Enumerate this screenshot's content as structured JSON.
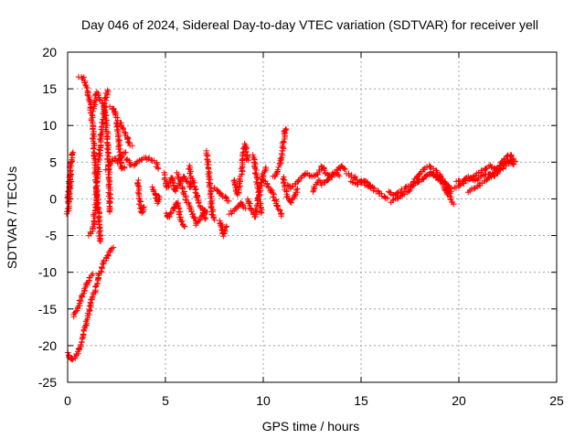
{
  "chart_data": {
    "type": "scatter",
    "title": "Day 046 of 2024, Sidereal Day-to-day VTEC variation (SDTVAR) for receiver yell",
    "xlabel": "GPS time / hours",
    "ylabel": "SDTVAR / TECUs",
    "xlim": [
      0,
      25
    ],
    "ylim": [
      -25,
      20
    ],
    "xticks": [
      0,
      5,
      10,
      15,
      20,
      25
    ],
    "yticks": [
      -25,
      -20,
      -15,
      -10,
      -5,
      0,
      5,
      10,
      15,
      20
    ],
    "grid": true,
    "marker": "+",
    "marker_color": "#ff0000",
    "series": [
      {
        "name": "SDTVAR",
        "tracks": [
          [
            [
              0.0,
              -21.0
            ],
            [
              0.2,
              -22.0
            ],
            [
              0.4,
              -21.5
            ],
            [
              0.6,
              -20.5
            ],
            [
              0.8,
              -18.5
            ],
            [
              1.0,
              -16.5
            ],
            [
              1.2,
              -14.0
            ],
            [
              1.4,
              -12.5
            ],
            [
              1.6,
              -10.5
            ],
            [
              1.8,
              -9.0
            ],
            [
              2.0,
              -8.0
            ],
            [
              2.2,
              -7.0
            ],
            [
              2.35,
              -6.5
            ]
          ],
          [
            [
              0.3,
              -16.0
            ],
            [
              0.5,
              -15.0
            ],
            [
              0.7,
              -13.5
            ],
            [
              0.9,
              -12.0
            ],
            [
              1.1,
              -11.0
            ],
            [
              1.3,
              -10.0
            ]
          ],
          [
            [
              0.0,
              -0.5
            ],
            [
              0.05,
              0.5
            ],
            [
              0.1,
              2.5
            ],
            [
              0.15,
              4.5
            ],
            [
              0.2,
              6.0
            ],
            [
              0.25,
              6.5
            ]
          ],
          [
            [
              0.0,
              -2.0
            ],
            [
              0.08,
              0.0
            ],
            [
              0.12,
              1.5
            ],
            [
              0.18,
              3.5
            ]
          ],
          [
            [
              0.6,
              16.5
            ],
            [
              0.8,
              16.5
            ],
            [
              1.0,
              15.0
            ],
            [
              1.2,
              12.0
            ],
            [
              1.3,
              9.0
            ],
            [
              1.4,
              5.0
            ],
            [
              1.45,
              2.5
            ],
            [
              1.55,
              -1.0
            ],
            [
              1.6,
              -3.0
            ],
            [
              1.65,
              -5.0
            ],
            [
              1.7,
              -6.0
            ]
          ],
          [
            [
              1.1,
              -5.0
            ],
            [
              1.3,
              -4.0
            ],
            [
              1.4,
              -1.5
            ],
            [
              1.5,
              1.5
            ],
            [
              1.6,
              5.0
            ],
            [
              1.7,
              8.0
            ],
            [
              1.8,
              10.5
            ],
            [
              1.9,
              13.0
            ],
            [
              2.0,
              14.5
            ],
            [
              2.1,
              15.0
            ]
          ],
          [
            [
              1.3,
              12.0
            ],
            [
              1.5,
              14.5
            ],
            [
              1.7,
              13.5
            ],
            [
              1.9,
              12.0
            ],
            [
              2.05,
              8.0
            ],
            [
              2.1,
              4.0
            ],
            [
              2.15,
              0.0
            ],
            [
              2.2,
              -2.0
            ]
          ],
          [
            [
              2.2,
              12.5
            ],
            [
              2.4,
              12.0
            ],
            [
              2.5,
              11.0
            ],
            [
              2.6,
              8.0
            ],
            [
              2.7,
              5.0
            ],
            [
              2.8,
              4.0
            ],
            [
              3.0,
              4.5
            ]
          ],
          [
            [
              2.0,
              4.0
            ],
            [
              2.2,
              5.0
            ],
            [
              2.4,
              5.5
            ],
            [
              2.6,
              5.0
            ],
            [
              2.8,
              6.0
            ],
            [
              3.0,
              6.5
            ]
          ],
          [
            [
              2.7,
              10.5
            ],
            [
              2.9,
              9.0
            ],
            [
              3.1,
              8.0
            ],
            [
              3.3,
              7.0
            ]
          ],
          [
            [
              3.0,
              5.5
            ],
            [
              3.3,
              4.5
            ],
            [
              3.6,
              5.0
            ],
            [
              3.9,
              5.5
            ],
            [
              4.2,
              5.5
            ],
            [
              4.5,
              5.0
            ],
            [
              4.6,
              4.0
            ]
          ],
          [
            [
              3.6,
              2.5
            ],
            [
              3.7,
              -1.0
            ],
            [
              3.8,
              -2.0
            ],
            [
              3.9,
              -1.0
            ]
          ],
          [
            [
              4.3,
              1.5
            ],
            [
              4.5,
              0.5
            ],
            [
              4.6,
              -0.5
            ],
            [
              4.7,
              0.5
            ]
          ],
          [
            [
              4.9,
              3.5
            ],
            [
              5.1,
              1.5
            ],
            [
              5.3,
              3.0
            ],
            [
              5.5,
              1.0
            ],
            [
              5.7,
              2.0
            ],
            [
              5.9,
              3.0
            ],
            [
              6.1,
              2.5
            ],
            [
              6.3,
              1.5
            ],
            [
              6.5,
              2.5
            ]
          ],
          [
            [
              5.0,
              -2.0
            ],
            [
              5.2,
              -2.5
            ],
            [
              5.4,
              -1.5
            ],
            [
              5.6,
              -0.5
            ],
            [
              5.8,
              -3.0
            ],
            [
              6.0,
              -4.0
            ]
          ],
          [
            [
              5.6,
              3.5
            ],
            [
              5.8,
              2.0
            ],
            [
              6.0,
              0.5
            ],
            [
              6.2,
              -1.0
            ],
            [
              6.4,
              -2.0
            ],
            [
              6.6,
              -3.5
            ],
            [
              6.8,
              -2.5
            ],
            [
              7.0,
              -1.5
            ],
            [
              7.2,
              -2.0
            ]
          ],
          [
            [
              6.2,
              4.5
            ],
            [
              6.3,
              3.0
            ],
            [
              6.5,
              1.5
            ],
            [
              6.7,
              -0.5
            ],
            [
              6.9,
              -1.5
            ],
            [
              7.1,
              -3.0
            ]
          ],
          [
            [
              7.1,
              6.5
            ],
            [
              7.2,
              4.0
            ],
            [
              7.3,
              1.0
            ],
            [
              7.4,
              -2.0
            ],
            [
              7.5,
              -3.0
            ]
          ],
          [
            [
              7.5,
              1.5
            ],
            [
              7.7,
              1.0
            ],
            [
              7.9,
              0.5
            ],
            [
              8.1,
              0.0
            ],
            [
              8.3,
              -0.5
            ]
          ],
          [
            [
              7.8,
              -3.0
            ],
            [
              7.9,
              -4.0
            ],
            [
              8.0,
              -5.0
            ],
            [
              8.1,
              -3.5
            ]
          ],
          [
            [
              8.3,
              -2.0
            ],
            [
              8.5,
              -1.5
            ],
            [
              8.7,
              -1.0
            ],
            [
              8.9,
              -0.5
            ],
            [
              9.1,
              -1.5
            ]
          ],
          [
            [
              8.5,
              2.5
            ],
            [
              8.7,
              0.5
            ],
            [
              8.9,
              4.0
            ],
            [
              9.0,
              6.5
            ],
            [
              9.1,
              7.5
            ],
            [
              9.2,
              5.0
            ]
          ],
          [
            [
              9.2,
              0.0
            ],
            [
              9.4,
              -1.5
            ],
            [
              9.6,
              -2.5
            ],
            [
              9.8,
              1.0
            ],
            [
              10.0,
              3.5
            ],
            [
              10.2,
              4.5
            ]
          ],
          [
            [
              9.5,
              6.0
            ],
            [
              9.6,
              4.0
            ],
            [
              9.7,
              2.0
            ],
            [
              9.8,
              0.0
            ],
            [
              9.9,
              -2.0
            ]
          ],
          [
            [
              10.0,
              2.5
            ],
            [
              10.2,
              2.0
            ],
            [
              10.4,
              1.0
            ],
            [
              10.6,
              0.0
            ],
            [
              10.8,
              -1.5
            ],
            [
              11.0,
              -2.5
            ]
          ],
          [
            [
              10.5,
              3.0
            ],
            [
              10.7,
              3.5
            ],
            [
              10.9,
              5.0
            ],
            [
              11.0,
              7.0
            ],
            [
              11.1,
              9.5
            ],
            [
              11.2,
              9.5
            ]
          ],
          [
            [
              11.2,
              2.0
            ],
            [
              11.4,
              1.5
            ],
            [
              11.6,
              2.0
            ],
            [
              11.8,
              2.5
            ],
            [
              12.0,
              3.0
            ],
            [
              12.2,
              3.5
            ]
          ],
          [
            [
              11.0,
              3.0
            ],
            [
              11.2,
              0.5
            ],
            [
              11.4,
              -0.5
            ],
            [
              11.6,
              0.5
            ],
            [
              11.8,
              1.5
            ]
          ],
          [
            [
              12.2,
              3.5
            ],
            [
              12.5,
              3.0
            ],
            [
              12.8,
              3.5
            ],
            [
              13.0,
              4.5
            ],
            [
              13.2,
              3.5
            ],
            [
              13.5,
              3.0
            ],
            [
              13.8,
              4.0
            ],
            [
              14.0,
              4.5
            ],
            [
              14.3,
              4.0
            ]
          ],
          [
            [
              12.5,
              1.0
            ],
            [
              12.8,
              2.5
            ],
            [
              13.0,
              2.0
            ],
            [
              13.3,
              2.5
            ],
            [
              13.6,
              3.5
            ],
            [
              13.9,
              3.0
            ]
          ],
          [
            [
              14.3,
              3.5
            ],
            [
              14.6,
              3.0
            ],
            [
              14.9,
              2.5
            ],
            [
              15.2,
              2.0
            ],
            [
              15.5,
              1.5
            ],
            [
              15.8,
              1.0
            ],
            [
              16.1,
              0.5
            ],
            [
              16.4,
              0.0
            ]
          ],
          [
            [
              14.5,
              2.5
            ],
            [
              14.8,
              2.0
            ],
            [
              15.1,
              2.5
            ],
            [
              15.4,
              2.0
            ],
            [
              15.7,
              1.5
            ]
          ],
          [
            [
              16.4,
              1.0
            ],
            [
              16.7,
              0.5
            ],
            [
              17.0,
              1.0
            ],
            [
              17.3,
              1.5
            ],
            [
              17.6,
              2.0
            ],
            [
              17.9,
              3.0
            ],
            [
              18.2,
              4.0
            ],
            [
              18.5,
              4.5
            ],
            [
              18.8,
              4.0
            ],
            [
              19.1,
              3.0
            ],
            [
              19.4,
              2.0
            ],
            [
              19.7,
              1.0
            ]
          ],
          [
            [
              16.5,
              -0.5
            ],
            [
              16.8,
              0.0
            ],
            [
              17.1,
              0.5
            ],
            [
              17.4,
              1.0
            ],
            [
              17.7,
              2.0
            ],
            [
              18.0,
              2.5
            ],
            [
              18.3,
              3.0
            ],
            [
              18.6,
              3.5
            ],
            [
              18.9,
              3.0
            ],
            [
              19.2,
              2.0
            ],
            [
              19.5,
              0.5
            ],
            [
              19.7,
              -0.5
            ],
            [
              19.8,
              -1.0
            ]
          ],
          [
            [
              18.5,
              3.5
            ],
            [
              18.8,
              3.0
            ],
            [
              19.1,
              2.5
            ],
            [
              19.4,
              1.5
            ],
            [
              19.6,
              0.5
            ]
          ],
          [
            [
              19.8,
              1.5
            ],
            [
              20.1,
              2.0
            ],
            [
              20.4,
              2.5
            ],
            [
              20.7,
              3.0
            ],
            [
              21.0,
              3.5
            ],
            [
              21.3,
              4.0
            ],
            [
              21.6,
              4.5
            ],
            [
              21.9,
              4.0
            ],
            [
              22.2,
              4.5
            ],
            [
              22.5,
              5.0
            ],
            [
              22.8,
              5.5
            ]
          ],
          [
            [
              19.9,
              2.5
            ],
            [
              20.2,
              2.5
            ],
            [
              20.5,
              3.0
            ],
            [
              20.8,
              2.5
            ],
            [
              21.1,
              3.0
            ],
            [
              21.4,
              3.5
            ],
            [
              21.7,
              3.0
            ],
            [
              22.0,
              3.5
            ],
            [
              22.3,
              4.5
            ],
            [
              22.6,
              5.0
            ],
            [
              22.9,
              4.5
            ]
          ],
          [
            [
              20.5,
              1.0
            ],
            [
              20.8,
              1.5
            ],
            [
              21.1,
              2.0
            ],
            [
              21.4,
              2.5
            ],
            [
              21.7,
              3.5
            ],
            [
              22.0,
              4.0
            ],
            [
              22.3,
              5.5
            ],
            [
              22.6,
              6.0
            ],
            [
              22.9,
              5.0
            ]
          ]
        ]
      }
    ]
  }
}
